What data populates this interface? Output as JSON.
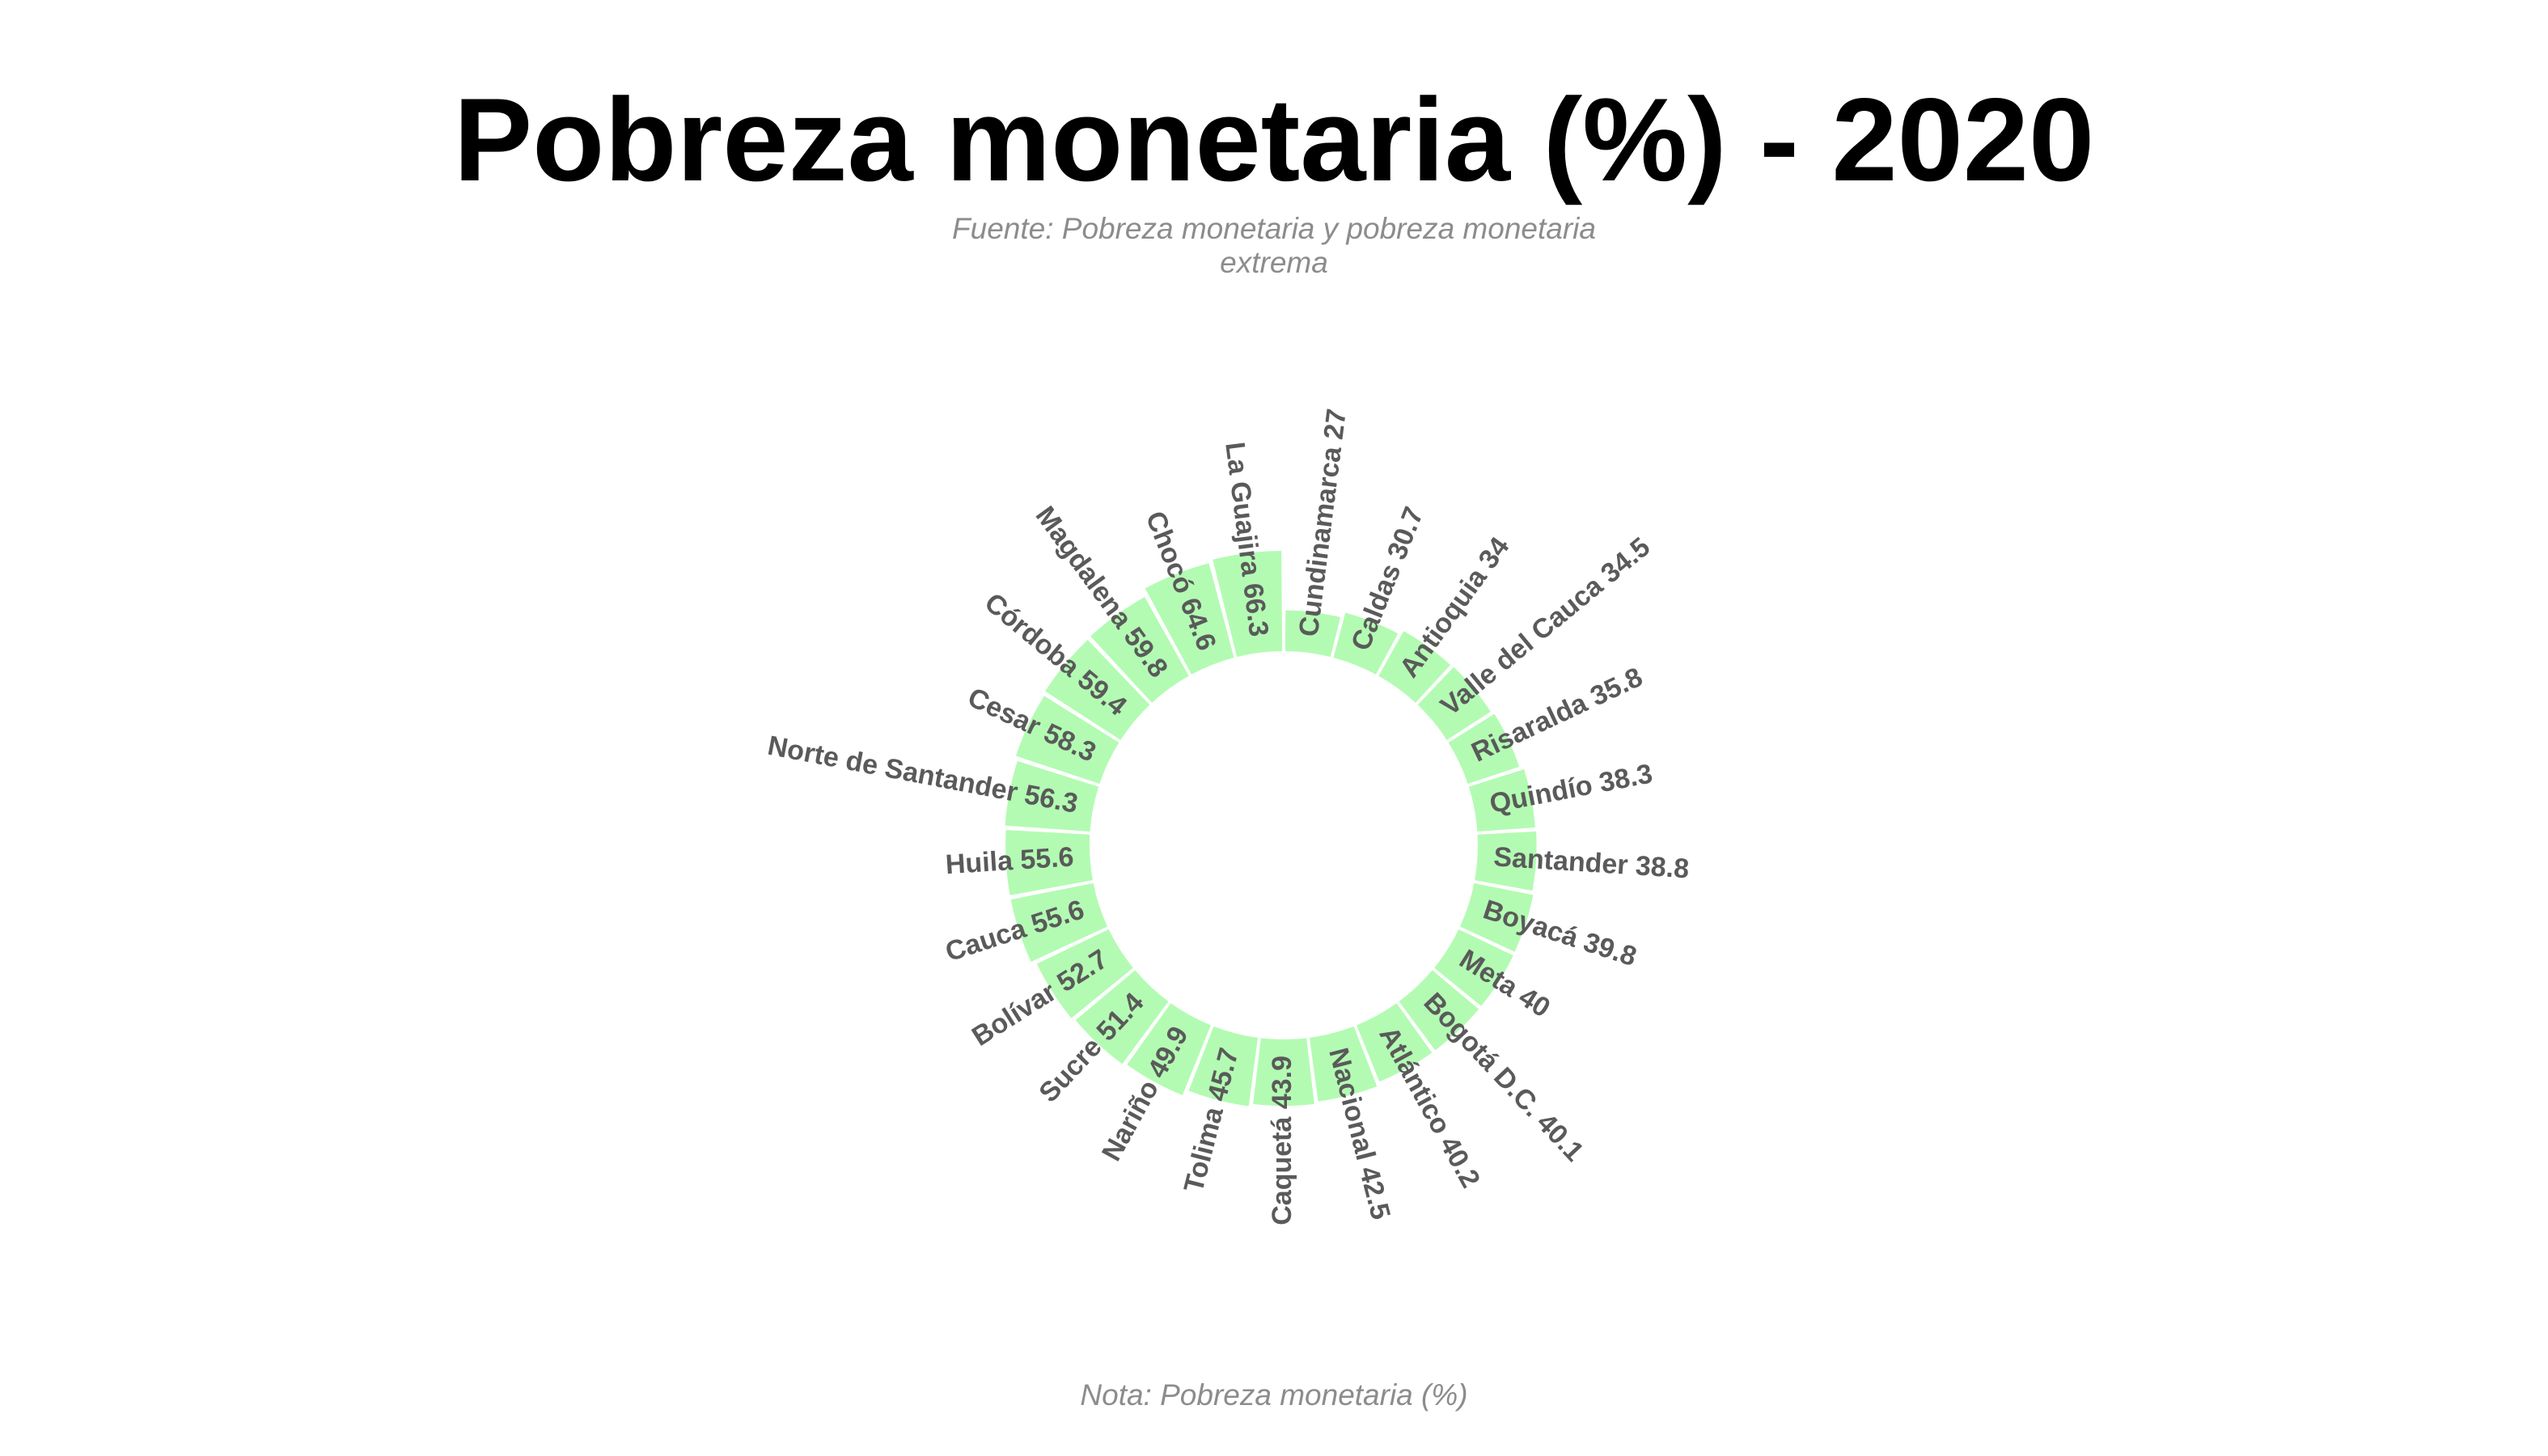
{
  "chart_data": {
    "type": "bar",
    "layout": "circular",
    "title": "Pobreza monetaria (%) - 2020",
    "subtitle": "Fuente: Pobreza monetaria y pobreza monetaria extrema",
    "note": "Nota: Pobreza monetaria (%)",
    "bar_color": "#b3fbb3",
    "label_color": "#5a5a5a",
    "categories": [
      "Cundinamarca",
      "Caldas",
      "Antioquia",
      "Valle del Cauca",
      "Risaralda",
      "Quindío",
      "Santander",
      "Boyacá",
      "Meta",
      "Bogotá D.C.",
      "Atlántico",
      "Nacional",
      "Caquetá",
      "Tolima",
      "Nariño",
      "Sucre",
      "Bolívar",
      "Cauca",
      "Huila",
      "Norte de Santander",
      "Cesar",
      "Córdoba",
      "Magdalena",
      "Chocó",
      "La Guajira"
    ],
    "values": [
      27,
      30.7,
      34,
      34.5,
      35.8,
      38.3,
      38.8,
      39.8,
      40,
      40.1,
      40.2,
      42.5,
      43.9,
      45.7,
      49.9,
      51.4,
      52.7,
      55.6,
      55.6,
      56.3,
      58.3,
      59.4,
      59.8,
      64.6,
      66.3
    ],
    "labels": [
      "Cundinamarca 27",
      "Caldas 30.7",
      "Antioquia 34",
      "Valle del Cauca 34.5",
      "Risaralda 35.8",
      "Quindío 38.3",
      "Santander 38.8",
      "Boyacá 39.8",
      "Meta 40",
      "Bogotá D.C. 40.1",
      "Atlántico 40.2",
      "Nacional 42.5",
      "Caquetá 43.9",
      "Tolima 45.7",
      "Nariño 49.9",
      "Sucre 51.4",
      "Bolívar 52.7",
      "Cauca 55.6",
      "Huila 55.6",
      "Norte de Santander 56.3",
      "Cesar 58.3",
      "Córdoba 59.4",
      "Magdalena 59.8",
      "Chocó 64.6",
      "La Guajira 66.3"
    ]
  }
}
